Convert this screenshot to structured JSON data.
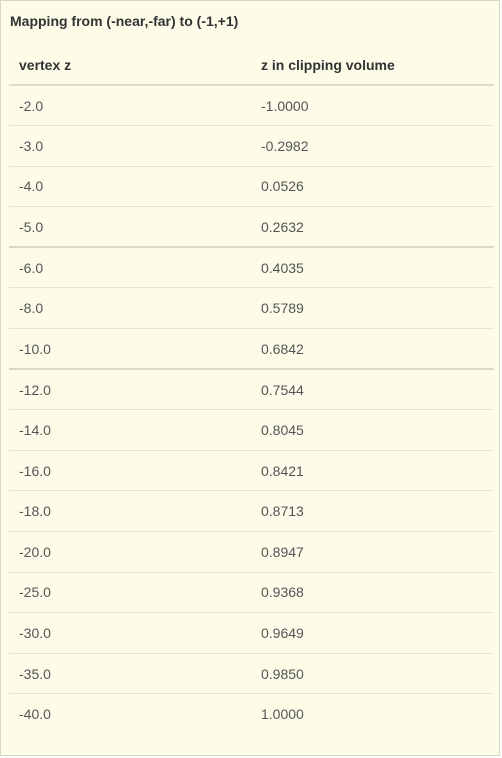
{
  "caption": "Mapping from (-near,-far) to (-1,+1)",
  "columns": [
    "vertex z",
    "z in clipping volume"
  ],
  "rows": [
    [
      "-2.0",
      "-1.0000"
    ],
    [
      "-3.0",
      "-0.2982"
    ],
    [
      "-4.0",
      "0.0526"
    ],
    [
      "-5.0",
      "0.2632"
    ],
    [
      "-6.0",
      "0.4035"
    ],
    [
      "-8.0",
      "0.5789"
    ],
    [
      "-10.0",
      "0.6842"
    ],
    [
      "-12.0",
      "0.7544"
    ],
    [
      "-14.0",
      "0.8045"
    ],
    [
      "-16.0",
      "0.8421"
    ],
    [
      "-18.0",
      "0.8713"
    ],
    [
      "-20.0",
      "0.8947"
    ],
    [
      "-25.0",
      "0.9368"
    ],
    [
      "-30.0",
      "0.9649"
    ],
    [
      "-35.0",
      "0.9850"
    ],
    [
      "-40.0",
      "1.0000"
    ]
  ]
}
